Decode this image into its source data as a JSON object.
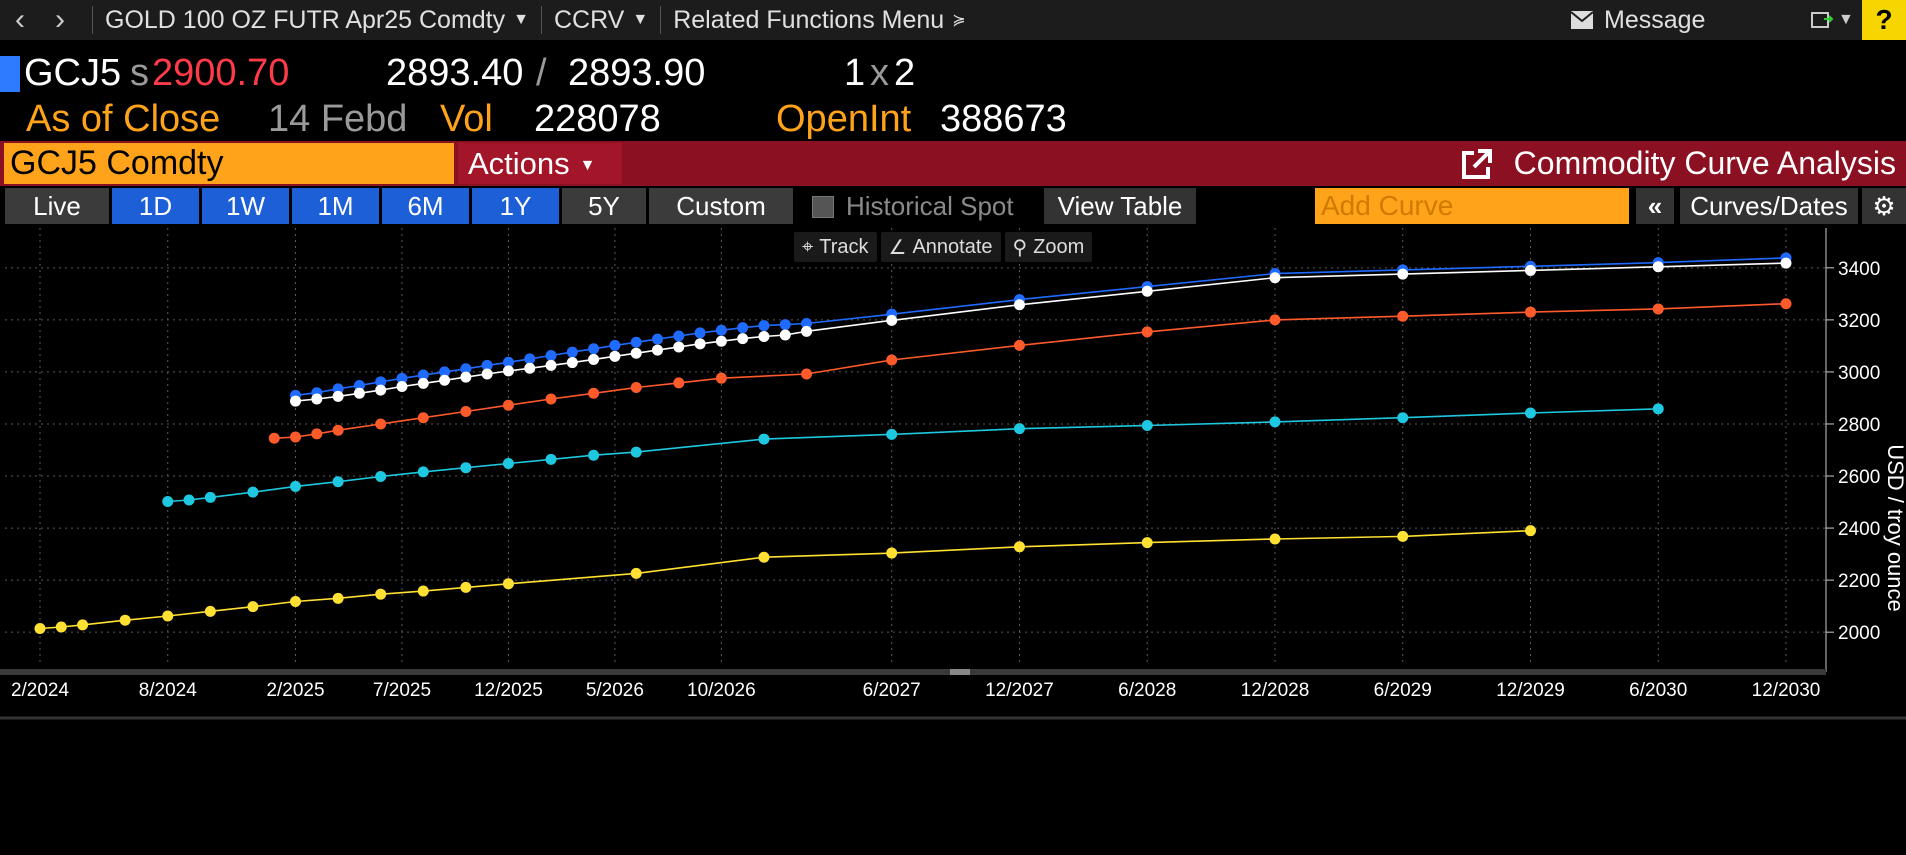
{
  "topbar": {
    "security": "GOLD 100 OZ FUTR Apr25 Comdty",
    "function": "CCRV",
    "related": "Related Functions Menu",
    "message": "Message",
    "help": "?"
  },
  "quote": {
    "ticker": "GCJ5",
    "settle_prefix": "s",
    "settle": "2900.70",
    "bid": "2893.40",
    "slash": "/",
    "ask": "2893.90",
    "size_a": "1",
    "size_x": "x",
    "size_b": "2",
    "asof_label": "As of Close",
    "asof_date": "14 Febd",
    "vol_label": "Vol",
    "vol": "228078",
    "oi_label": "OpenInt",
    "oi": "388673"
  },
  "command": {
    "field": "GCJ5 Comdty",
    "actions": "Actions",
    "title": "Commodity Curve Analysis"
  },
  "tabs": {
    "live": "Live",
    "d1": "1D",
    "w1": "1W",
    "m1": "1M",
    "m6": "6M",
    "y1": "1Y",
    "y5": "5Y",
    "custom": "Custom",
    "historical_spot": "Historical Spot",
    "view_table": "View Table",
    "add_curve_placeholder": "Add Curve",
    "collapse": "«",
    "curves_dates": "Curves/Dates"
  },
  "chart_tools": {
    "track": "Track",
    "annotate": "Annotate",
    "zoom": "Zoom"
  },
  "colors": {
    "blue": "#1f6bff",
    "white": "#ffffff",
    "red": "#ff5a2a",
    "cyan": "#1ec8e0",
    "yellow": "#ffe033"
  },
  "chart_data": {
    "type": "line",
    "ylabel": "USD / troy ounce",
    "ylim": [
      1870,
      3530
    ],
    "yticks": [
      2000,
      2200,
      2400,
      2600,
      2800,
      3000,
      3200,
      3400
    ],
    "xtick_labels": [
      "2/2024",
      "8/2024",
      "2/2025",
      "7/2025",
      "12/2025",
      "5/2026",
      "10/2026",
      "6/2027",
      "12/2027",
      "6/2028",
      "12/2028",
      "6/2029",
      "12/2029",
      "6/2030",
      "12/2030"
    ],
    "xtick_months": [
      0,
      6,
      12,
      17,
      22,
      27,
      32,
      40,
      46,
      52,
      58,
      64,
      70,
      76,
      82
    ],
    "xlim": [
      0,
      83.5
    ],
    "series": [
      {
        "color": "#1f6bff",
        "x": [
          12,
          13,
          14,
          15,
          16,
          17,
          18,
          19,
          20,
          21,
          22,
          23,
          24,
          25,
          26,
          27,
          28,
          29,
          30,
          31,
          32,
          33,
          34,
          35,
          36,
          40,
          46,
          52,
          58,
          64,
          70,
          76,
          82
        ],
        "y": [
          2910,
          2920,
          2935,
          2948,
          2962,
          2975,
          2988,
          3000,
          3012,
          3025,
          3037,
          3050,
          3063,
          3076,
          3089,
          3102,
          3114,
          3126,
          3138,
          3150,
          3160,
          3170,
          3178,
          3182,
          3186,
          3222,
          3278,
          3328,
          3378,
          3392,
          3406,
          3420,
          3438
        ]
      },
      {
        "color": "#ffffff",
        "x": [
          12,
          13,
          14,
          15,
          16,
          17,
          18,
          19,
          20,
          21,
          22,
          23,
          24,
          25,
          26,
          27,
          28,
          29,
          30,
          31,
          32,
          33,
          34,
          35,
          36,
          40,
          46,
          52,
          58,
          64,
          70,
          76,
          82
        ],
        "y": [
          2888,
          2896,
          2906,
          2918,
          2930,
          2944,
          2956,
          2968,
          2980,
          2992,
          3004,
          3014,
          3025,
          3036,
          3048,
          3060,
          3072,
          3084,
          3096,
          3108,
          3118,
          3128,
          3136,
          3142,
          3156,
          3198,
          3258,
          3310,
          3362,
          3376,
          3390,
          3404,
          3418
        ]
      },
      {
        "color": "#ff5a2a",
        "x": [
          11,
          12,
          13,
          14,
          16,
          18,
          20,
          22,
          24,
          26,
          28,
          30,
          32,
          36,
          40,
          46,
          52,
          58,
          64,
          70,
          76,
          82
        ],
        "y": [
          2745,
          2750,
          2762,
          2776,
          2800,
          2824,
          2848,
          2872,
          2896,
          2918,
          2940,
          2958,
          2976,
          2992,
          3046,
          3102,
          3154,
          3200,
          3214,
          3230,
          3242,
          3262
        ]
      },
      {
        "color": "#1ec8e0",
        "x": [
          6,
          7,
          8,
          10,
          12,
          14,
          16,
          18,
          20,
          22,
          24,
          26,
          28,
          34,
          40,
          46,
          52,
          58,
          64,
          70,
          76
        ],
        "y": [
          2502,
          2508,
          2518,
          2538,
          2560,
          2578,
          2598,
          2616,
          2632,
          2648,
          2664,
          2680,
          2692,
          2742,
          2760,
          2782,
          2794,
          2808,
          2824,
          2842,
          2858
        ]
      },
      {
        "color": "#ffe033",
        "x": [
          0,
          1,
          2,
          4,
          6,
          8,
          10,
          12,
          14,
          16,
          18,
          20,
          22,
          28,
          34,
          40,
          46,
          52,
          58,
          64,
          70
        ],
        "y": [
          2014,
          2020,
          2028,
          2046,
          2062,
          2080,
          2098,
          2118,
          2130,
          2146,
          2158,
          2172,
          2186,
          2226,
          2288,
          2304,
          2328,
          2344,
          2358,
          2368,
          2390
        ]
      }
    ]
  }
}
